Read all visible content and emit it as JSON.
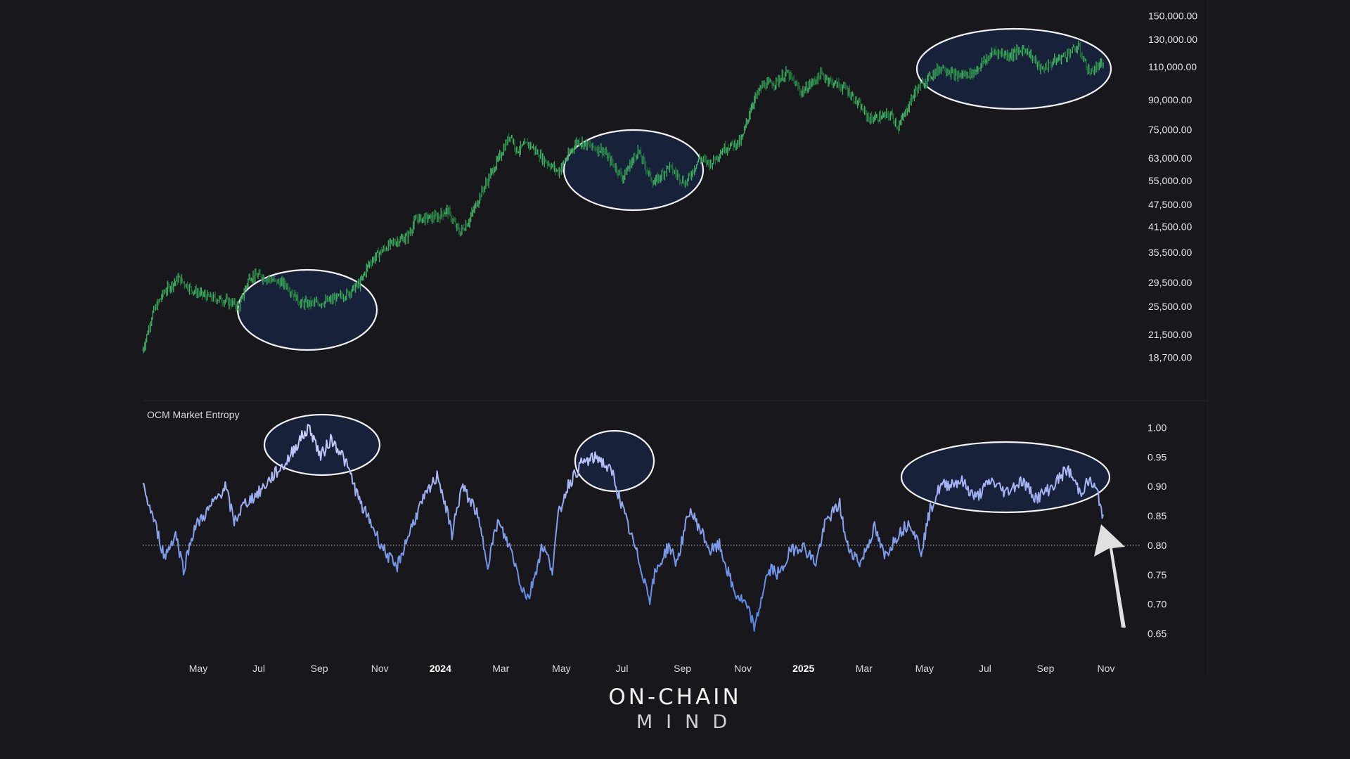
{
  "colors": {
    "background": "#18181c",
    "price_up": "#3fae62",
    "price_down": "#216b3a",
    "entropy_high": "#d6d4ff",
    "entropy_low": "#4c7fe0",
    "highlight_fill": "#17213a",
    "highlight_stroke": "#f2f2f2",
    "reference_line": "#c8c8c8",
    "arrow": "#e0e0e0"
  },
  "logo": {
    "main": "ON-CHAIN",
    "sub": "MIND"
  },
  "chart_data": [
    {
      "type": "line",
      "title": "",
      "scale": "log",
      "grid": false,
      "x_ticks": [
        "May",
        "Jul",
        "Sep",
        "Nov",
        "2024",
        "Mar",
        "May",
        "Jul",
        "Sep",
        "Nov",
        "2025",
        "Mar",
        "May",
        "Jul",
        "Sep",
        "Nov"
      ],
      "bold_x_ticks": [
        "2024",
        "2025"
      ],
      "y_ticks": [
        "150,000.00",
        "130,000.00",
        "110,000.00",
        "90,000.00",
        "75,000.00",
        "63,000.00",
        "55,000.00",
        "47,500.00",
        "41,500.00",
        "35,500.00",
        "29,500.00",
        "25,500.00",
        "21,500.00",
        "18,700.00"
      ],
      "y_tick_values": [
        150000,
        130000,
        110000,
        90000,
        75000,
        63000,
        55000,
        47500,
        41500,
        35500,
        29500,
        25500,
        21500,
        18700
      ],
      "ylim": [
        16000,
        155000
      ],
      "xlim": [
        "2023-03-10",
        "2025-10-31"
      ],
      "x": [
        "2023-03-10",
        "2023-03-20",
        "2023-04-01",
        "2023-04-15",
        "2023-05-01",
        "2023-05-15",
        "2023-06-01",
        "2023-06-15",
        "2023-06-25",
        "2023-07-05",
        "2023-07-20",
        "2023-08-01",
        "2023-08-16",
        "2023-08-20",
        "2023-09-01",
        "2023-09-15",
        "2023-10-01",
        "2023-10-15",
        "2023-10-23",
        "2023-11-01",
        "2023-11-15",
        "2023-12-01",
        "2023-12-10",
        "2024-01-01",
        "2024-01-10",
        "2024-01-23",
        "2024-02-01",
        "2024-02-15",
        "2024-03-01",
        "2024-03-14",
        "2024-03-20",
        "2024-04-01",
        "2024-04-15",
        "2024-05-01",
        "2024-05-20",
        "2024-06-01",
        "2024-06-15",
        "2024-07-05",
        "2024-07-20",
        "2024-08-05",
        "2024-08-20",
        "2024-09-06",
        "2024-09-20",
        "2024-10-01",
        "2024-10-15",
        "2024-11-01",
        "2024-11-12",
        "2024-11-22",
        "2024-12-05",
        "2024-12-17",
        "2025-01-01",
        "2025-01-20",
        "2025-02-01",
        "2025-02-15",
        "2025-03-01",
        "2025-03-10",
        "2025-04-01",
        "2025-04-08",
        "2025-04-25",
        "2025-05-10",
        "2025-05-22",
        "2025-06-05",
        "2025-06-22",
        "2025-07-14",
        "2025-07-28",
        "2025-08-14",
        "2025-08-30",
        "2025-09-15",
        "2025-10-06",
        "2025-10-17",
        "2025-10-31"
      ],
      "series": [
        {
          "values": [
            19500,
            24500,
            28000,
            30300,
            28000,
            27000,
            26500,
            25500,
            30500,
            30800,
            29800,
            29200,
            26000,
            26000,
            26000,
            26500,
            27500,
            29500,
            33000,
            35000,
            37500,
            39000,
            43500,
            44000,
            46000,
            40000,
            43000,
            52000,
            62000,
            73000,
            66000,
            69000,
            63000,
            58000,
            70000,
            68000,
            66000,
            56000,
            66000,
            54000,
            60000,
            54000,
            63000,
            61000,
            67000,
            70000,
            88000,
            98000,
            100000,
            106000,
            94000,
            105000,
            100000,
            96000,
            86000,
            80000,
            82000,
            76000,
            95000,
            104000,
            110000,
            104000,
            106000,
            121000,
            118000,
            123000,
            108000,
            115000,
            124000,
            106000,
            112000
          ]
        }
      ]
    },
    {
      "type": "line",
      "title": "OCM Market Entropy",
      "grid": false,
      "y_ticks": [
        "1.00",
        "0.95",
        "0.90",
        "0.85",
        "0.80",
        "0.75",
        "0.70",
        "0.65"
      ],
      "y_tick_values": [
        1.0,
        0.95,
        0.9,
        0.85,
        0.8,
        0.75,
        0.7,
        0.65
      ],
      "ylim": [
        0.64,
        1.01
      ],
      "reference_line": 0.8,
      "xlim": [
        "2023-03-10",
        "2025-10-31"
      ],
      "x": [
        "2023-03-10",
        "2023-03-20",
        "2023-04-01",
        "2023-04-12",
        "2023-04-20",
        "2023-05-01",
        "2023-05-15",
        "2023-06-01",
        "2023-06-10",
        "2023-06-20",
        "2023-07-05",
        "2023-07-20",
        "2023-08-01",
        "2023-08-15",
        "2023-08-25",
        "2023-09-05",
        "2023-09-15",
        "2023-09-25",
        "2023-10-05",
        "2023-10-15",
        "2023-10-25",
        "2023-11-05",
        "2023-11-20",
        "2023-12-05",
        "2023-12-15",
        "2024-01-01",
        "2024-01-15",
        "2024-01-25",
        "2024-02-08",
        "2024-02-20",
        "2024-03-01",
        "2024-03-15",
        "2024-03-25",
        "2024-04-01",
        "2024-04-15",
        "2024-04-25",
        "2024-05-01",
        "2024-05-10",
        "2024-05-25",
        "2024-06-10",
        "2024-06-25",
        "2024-07-05",
        "2024-07-20",
        "2024-08-01",
        "2024-08-06",
        "2024-08-20",
        "2024-08-28",
        "2024-09-10",
        "2024-09-20",
        "2024-10-01",
        "2024-10-10",
        "2024-10-25",
        "2024-11-05",
        "2024-11-15",
        "2024-11-25",
        "2024-12-01",
        "2024-12-10",
        "2024-12-20",
        "2025-01-01",
        "2025-01-15",
        "2025-01-25",
        "2025-02-08",
        "2025-02-15",
        "2025-03-01",
        "2025-03-15",
        "2025-03-25",
        "2025-04-08",
        "2025-04-20",
        "2025-05-01",
        "2025-05-10",
        "2025-05-20",
        "2025-06-10",
        "2025-06-25",
        "2025-07-10",
        "2025-07-25",
        "2025-08-10",
        "2025-08-25",
        "2025-09-10",
        "2025-09-25",
        "2025-10-08",
        "2025-10-17",
        "2025-10-25",
        "2025-10-31"
      ],
      "series": [
        {
          "values": [
            0.9,
            0.85,
            0.78,
            0.82,
            0.76,
            0.83,
            0.86,
            0.9,
            0.84,
            0.87,
            0.89,
            0.92,
            0.94,
            0.98,
            1.0,
            0.95,
            0.98,
            0.96,
            0.92,
            0.87,
            0.84,
            0.8,
            0.76,
            0.83,
            0.87,
            0.92,
            0.82,
            0.9,
            0.86,
            0.77,
            0.84,
            0.79,
            0.73,
            0.71,
            0.8,
            0.76,
            0.85,
            0.9,
            0.94,
            0.95,
            0.92,
            0.86,
            0.78,
            0.71,
            0.75,
            0.8,
            0.77,
            0.86,
            0.83,
            0.79,
            0.8,
            0.72,
            0.7,
            0.66,
            0.74,
            0.76,
            0.75,
            0.79,
            0.8,
            0.77,
            0.84,
            0.87,
            0.8,
            0.77,
            0.83,
            0.78,
            0.82,
            0.84,
            0.79,
            0.86,
            0.9,
            0.91,
            0.88,
            0.91,
            0.89,
            0.91,
            0.88,
            0.9,
            0.93,
            0.89,
            0.91,
            0.89,
            0.85
          ]
        }
      ]
    }
  ]
}
